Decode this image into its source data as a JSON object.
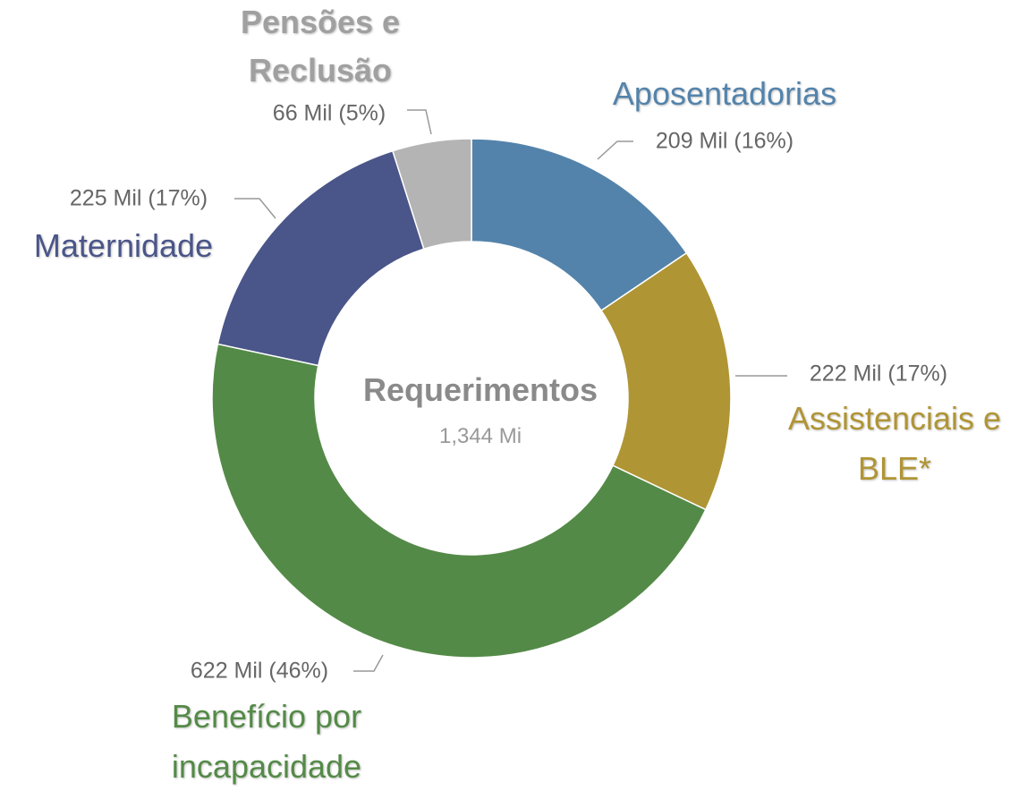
{
  "chart_data": {
    "type": "donut",
    "center_title": "Requerimentos",
    "center_label": "1,344 Mi",
    "categories": [
      "Aposentadorias",
      "Assistenciais e BLE*",
      "Benefício por incapacidade",
      "Maternidade",
      "Pensões e Reclusão"
    ],
    "values": [
      209,
      222,
      622,
      225,
      66
    ],
    "value_labels": [
      "209 Mil (16%)",
      "222 Mil (17%)",
      "622 Mil (46%)",
      "225 Mil (17%)",
      "66 Mil (5%)"
    ],
    "colors": [
      "#5383ab",
      "#b09535",
      "#548a47",
      "#4a5589",
      "#b4b4b4"
    ]
  }
}
